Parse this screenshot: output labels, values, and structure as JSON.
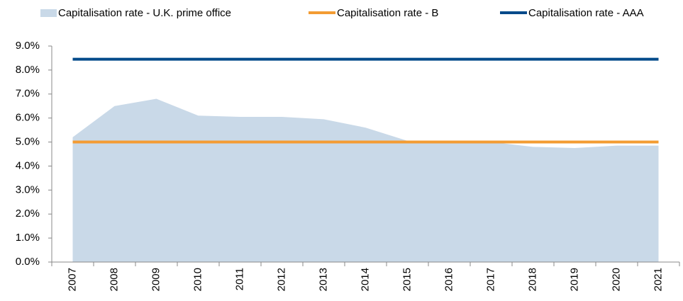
{
  "chart_data": {
    "type": "line",
    "categories": [
      "2007",
      "2008",
      "2009",
      "2010",
      "2011",
      "2012",
      "2013",
      "2014",
      "2015",
      "2016",
      "2017",
      "2018",
      "2019",
      "2020",
      "2021"
    ],
    "series": [
      {
        "name": "Capitalisation rate - U.K. prime office",
        "type": "area",
        "color": "#c9d9e8",
        "values": [
          5.2,
          6.5,
          6.8,
          6.1,
          6.05,
          6.05,
          5.95,
          5.6,
          5.05,
          5.0,
          5.0,
          4.8,
          4.75,
          4.85,
          4.85
        ]
      },
      {
        "name": "Capitalisation rate - B",
        "type": "line",
        "color": "#f39c33",
        "values": [
          5.0,
          5.0,
          5.0,
          5.0,
          5.0,
          5.0,
          5.0,
          5.0,
          5.0,
          5.0,
          5.0,
          5.0,
          5.0,
          5.0,
          5.0
        ]
      },
      {
        "name": "Capitalisation rate - AAA",
        "type": "line",
        "color": "#004a8a",
        "values": [
          8.45,
          8.45,
          8.45,
          8.45,
          8.45,
          8.45,
          8.45,
          8.45,
          8.45,
          8.45,
          8.45,
          8.45,
          8.45,
          8.45,
          8.45
        ]
      }
    ],
    "ylim": [
      0,
      9
    ],
    "yticks": [
      {
        "value": 0,
        "label": "0.0%"
      },
      {
        "value": 1,
        "label": "1.0%"
      },
      {
        "value": 2,
        "label": "2.0%"
      },
      {
        "value": 3,
        "label": "3.0%"
      },
      {
        "value": 4,
        "label": "4.0%"
      },
      {
        "value": 5,
        "label": "5.0%"
      },
      {
        "value": 6,
        "label": "6.0%"
      },
      {
        "value": 7,
        "label": "7.0%"
      },
      {
        "value": 8,
        "label": "8.0%"
      },
      {
        "value": 9,
        "label": "9.0%"
      }
    ],
    "legend": "top"
  }
}
